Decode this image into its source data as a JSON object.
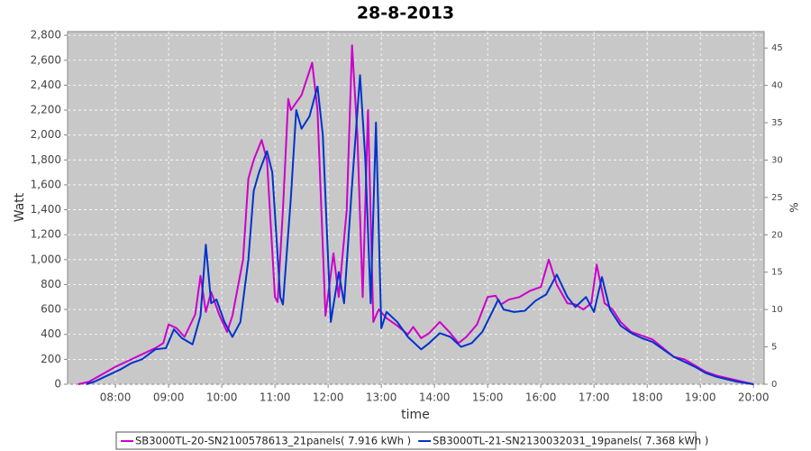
{
  "chart_data": {
    "type": "line",
    "title": "28-8-2013",
    "xlabel": "time",
    "ylabel": "Watt",
    "y2label": "%",
    "xlim": [
      7.1,
      20.2
    ],
    "xticks": [
      {
        "value": 8,
        "label": "08:00"
      },
      {
        "value": 9,
        "label": "09:00"
      },
      {
        "value": 10,
        "label": "10:00"
      },
      {
        "value": 11,
        "label": "11:00"
      },
      {
        "value": 12,
        "label": "12:00"
      },
      {
        "value": 13,
        "label": "13:00"
      },
      {
        "value": 14,
        "label": "14:00"
      },
      {
        "value": 15,
        "label": "15:00"
      },
      {
        "value": 16,
        "label": "16:00"
      },
      {
        "value": 17,
        "label": "17:00"
      },
      {
        "value": 18,
        "label": "18:00"
      },
      {
        "value": 19,
        "label": "19:00"
      },
      {
        "value": 20,
        "label": "20:00"
      }
    ],
    "ylim": [
      0,
      2830
    ],
    "yticks": [
      0,
      200,
      400,
      600,
      800,
      {
        "value": 1000,
        "label": "1,000"
      },
      {
        "value": 1200,
        "label": "1,200"
      },
      {
        "value": 1400,
        "label": "1,400"
      },
      {
        "value": 1600,
        "label": "1,600"
      },
      {
        "value": 1800,
        "label": "1,800"
      },
      {
        "value": 2000,
        "label": "2,000"
      },
      {
        "value": 2200,
        "label": "2,200"
      },
      {
        "value": 2400,
        "label": "2,400"
      },
      {
        "value": 2600,
        "label": "2,600"
      },
      {
        "value": 2800,
        "label": "2,800"
      }
    ],
    "y2lim": [
      0,
      47.2
    ],
    "y2ticks": [
      0,
      5,
      10,
      15,
      20,
      25,
      30,
      35,
      40,
      45
    ],
    "grid": true,
    "series": [
      {
        "name": "SB3000TL-20-SN2100578613_21panels( 7.916 kWh )",
        "color": "#cc00cc",
        "x": [
          7.3,
          7.5,
          7.75,
          8.0,
          8.25,
          8.5,
          8.75,
          8.9,
          9.0,
          9.15,
          9.3,
          9.5,
          9.6,
          9.7,
          9.8,
          9.95,
          10.1,
          10.2,
          10.4,
          10.5,
          10.6,
          10.75,
          10.85,
          11.0,
          11.05,
          11.15,
          11.25,
          11.3,
          11.5,
          11.7,
          11.8,
          11.95,
          12.1,
          12.2,
          12.35,
          12.45,
          12.55,
          12.65,
          12.75,
          12.85,
          12.95,
          13.1,
          13.3,
          13.5,
          13.6,
          13.75,
          13.9,
          14.1,
          14.3,
          14.45,
          14.6,
          14.8,
          15.0,
          15.15,
          15.25,
          15.4,
          15.6,
          15.8,
          16.0,
          16.15,
          16.3,
          16.5,
          16.65,
          16.8,
          16.95,
          17.05,
          17.2,
          17.35,
          17.5,
          17.7,
          17.9,
          18.1,
          18.3,
          18.5,
          18.7,
          18.9,
          19.1,
          19.3,
          19.5,
          19.7,
          19.9,
          20.0
        ],
        "values": [
          0,
          20,
          80,
          140,
          190,
          240,
          290,
          330,
          480,
          450,
          380,
          560,
          870,
          580,
          740,
          560,
          420,
          550,
          1000,
          1650,
          1800,
          1960,
          1800,
          700,
          660,
          1400,
          2290,
          2200,
          2320,
          2580,
          2200,
          550,
          1050,
          700,
          1400,
          2720,
          2000,
          700,
          2200,
          500,
          600,
          530,
          470,
          400,
          460,
          370,
          410,
          500,
          410,
          330,
          380,
          480,
          700,
          710,
          640,
          680,
          700,
          750,
          780,
          1000,
          800,
          650,
          640,
          600,
          650,
          960,
          650,
          600,
          500,
          420,
          390,
          360,
          290,
          220,
          200,
          150,
          100,
          70,
          50,
          30,
          10,
          0
        ]
      },
      {
        "name": "SB3000TL-21-SN2130032031_19panels( 7.368 kWh )",
        "color": "#0033cc",
        "x": [
          7.45,
          7.6,
          7.85,
          8.1,
          8.3,
          8.5,
          8.75,
          8.95,
          9.1,
          9.25,
          9.45,
          9.6,
          9.7,
          9.8,
          9.9,
          10.05,
          10.2,
          10.35,
          10.5,
          10.6,
          10.7,
          10.85,
          10.95,
          11.1,
          11.15,
          11.3,
          11.4,
          11.5,
          11.65,
          11.8,
          11.9,
          12.05,
          12.2,
          12.3,
          12.45,
          12.6,
          12.7,
          12.8,
          12.9,
          13.0,
          13.1,
          13.3,
          13.5,
          13.75,
          13.9,
          14.1,
          14.3,
          14.5,
          14.7,
          14.9,
          15.05,
          15.2,
          15.3,
          15.5,
          15.7,
          15.9,
          16.1,
          16.3,
          16.5,
          16.65,
          16.85,
          17.0,
          17.15,
          17.3,
          17.5,
          17.7,
          17.9,
          18.1,
          18.3,
          18.5,
          18.7,
          18.9,
          19.1,
          19.3,
          19.5,
          19.7,
          20.0
        ],
        "values": [
          0,
          20,
          70,
          120,
          170,
          200,
          280,
          290,
          440,
          370,
          320,
          550,
          1120,
          650,
          680,
          500,
          380,
          500,
          1000,
          1550,
          1700,
          1870,
          1700,
          700,
          640,
          1500,
          2200,
          2050,
          2150,
          2390,
          2000,
          500,
          900,
          650,
          1600,
          2480,
          1800,
          650,
          2100,
          450,
          580,
          500,
          380,
          280,
          330,
          410,
          380,
          300,
          330,
          420,
          550,
          680,
          600,
          580,
          590,
          670,
          720,
          880,
          700,
          620,
          700,
          580,
          860,
          600,
          470,
          410,
          370,
          340,
          280,
          220,
          180,
          140,
          90,
          60,
          40,
          20,
          0
        ]
      }
    ]
  }
}
